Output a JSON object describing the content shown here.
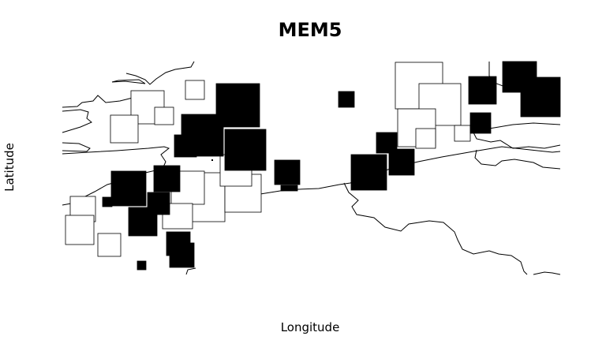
{
  "title": "MEM5",
  "axes": {
    "xlabel": "Longitude",
    "ylabel": "Latitude"
  },
  "legend": {
    "positive_fill": "#000000",
    "negative_fill": "#ffffff"
  },
  "map": {
    "background": "#ffffff",
    "coastline_color": "#000000",
    "symbol": "square-size-proportional-to-magnitude",
    "grid": false
  }
}
